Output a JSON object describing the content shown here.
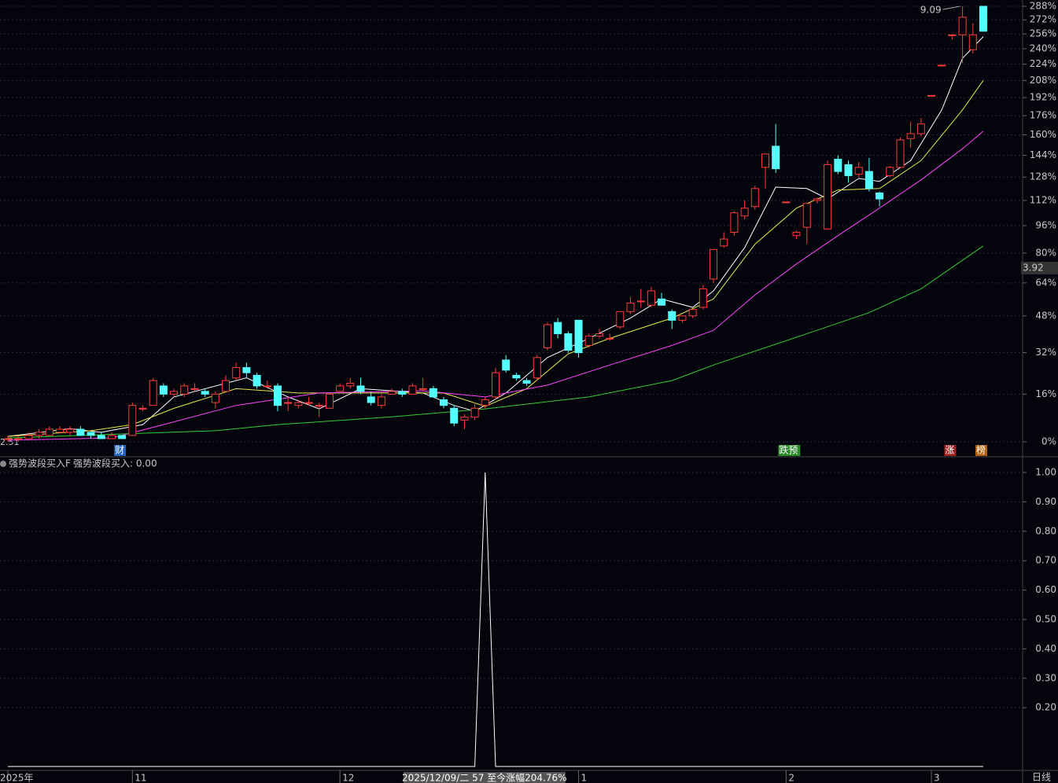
{
  "chart_data": [
    {
      "type": "candlestick",
      "ylim": [
        0,
        288
      ],
      "log_scale": true,
      "yticks": [
        {
          "value": 0,
          "label": "0%"
        },
        {
          "value": 16,
          "label": "16%"
        },
        {
          "value": 32,
          "label": "32%"
        },
        {
          "value": 48,
          "label": "48%"
        },
        {
          "value": 64,
          "label": "64%"
        },
        {
          "value": 80,
          "label": "80%"
        },
        {
          "value": 96,
          "label": "96%"
        },
        {
          "value": 112,
          "label": "112%"
        },
        {
          "value": 128,
          "label": "128%"
        },
        {
          "value": 144,
          "label": "144%"
        },
        {
          "value": 160,
          "label": "160%"
        },
        {
          "value": 176,
          "label": "176%"
        },
        {
          "value": 192,
          "label": "192%"
        },
        {
          "value": 208,
          "label": "208%"
        },
        {
          "value": 224,
          "label": "224%"
        },
        {
          "value": 240,
          "label": "240%"
        },
        {
          "value": 256,
          "label": "256%"
        },
        {
          "value": 272,
          "label": "272%"
        },
        {
          "value": 288,
          "label": "288%"
        }
      ],
      "grid": true,
      "up_color": "#ff3c3c",
      "down_color": "#54ffff",
      "candles": [
        [
          1,
          2,
          0,
          1
        ],
        [
          1,
          2,
          0,
          1
        ],
        [
          1,
          3,
          1,
          2
        ],
        [
          2,
          4,
          1,
          3
        ],
        [
          2,
          5,
          2,
          4
        ],
        [
          3,
          5,
          3,
          4
        ],
        [
          3,
          5,
          2,
          4
        ],
        [
          4,
          5,
          2,
          2
        ],
        [
          3,
          3,
          1,
          2
        ],
        [
          2,
          3,
          1,
          1
        ],
        [
          1,
          3,
          1,
          2
        ],
        [
          2,
          2,
          1,
          1
        ],
        [
          2,
          13,
          2,
          12
        ],
        [
          11,
          12,
          10,
          11
        ],
        [
          12,
          22,
          12,
          21
        ],
        [
          19,
          20,
          15,
          16
        ],
        [
          16,
          18,
          15,
          17
        ],
        [
          16,
          20,
          15,
          19
        ],
        [
          18,
          20,
          17,
          18
        ],
        [
          17,
          18,
          15,
          16
        ],
        [
          13,
          17,
          11,
          16
        ],
        [
          17,
          23,
          17,
          21
        ],
        [
          22,
          28,
          21,
          26
        ],
        [
          26,
          28,
          22,
          24
        ],
        [
          23,
          24,
          18,
          19
        ],
        [
          19,
          21,
          18,
          19
        ],
        [
          19,
          20,
          10,
          12
        ],
        [
          13,
          15,
          10,
          13
        ],
        [
          12,
          14,
          11,
          13
        ],
        [
          13,
          15,
          12,
          13
        ],
        [
          12,
          13,
          8,
          12
        ],
        [
          11,
          16,
          11,
          16
        ],
        [
          17,
          20,
          17,
          19
        ],
        [
          19,
          22,
          18,
          20
        ],
        [
          19,
          22,
          16,
          17
        ],
        [
          15,
          17,
          12,
          13
        ],
        [
          12,
          16,
          11,
          15
        ],
        [
          16,
          18,
          16,
          17
        ],
        [
          17,
          18,
          15,
          16
        ],
        [
          16,
          20,
          16,
          19
        ],
        [
          18,
          22,
          17,
          18
        ],
        [
          18,
          19,
          15,
          15
        ],
        [
          14,
          15,
          11,
          12
        ],
        [
          11,
          12,
          5,
          6
        ],
        [
          7,
          9,
          4,
          8
        ],
        [
          8,
          13,
          7,
          11
        ],
        [
          12,
          15,
          11,
          14
        ],
        [
          15,
          26,
          14,
          24
        ],
        [
          29,
          31,
          24,
          25
        ],
        [
          23,
          24,
          21,
          22
        ],
        [
          21,
          22,
          19,
          20
        ],
        [
          22,
          31,
          21,
          30
        ],
        [
          34,
          45,
          33,
          44
        ],
        [
          45,
          47,
          38,
          40
        ],
        [
          40,
          41,
          32,
          33
        ],
        [
          46,
          46,
          30,
          32
        ],
        [
          35,
          40,
          34,
          39
        ],
        [
          39,
          42,
          38,
          40
        ],
        [
          38,
          40,
          37,
          38
        ],
        [
          43,
          50,
          42,
          50
        ],
        [
          50,
          57,
          49,
          54
        ],
        [
          55,
          61,
          52,
          55
        ],
        [
          53,
          62,
          52,
          60
        ],
        [
          56,
          59,
          53,
          53
        ],
        [
          50,
          51,
          42,
          46
        ],
        [
          46,
          48,
          45,
          48
        ],
        [
          48,
          51,
          47,
          51
        ],
        [
          52,
          63,
          51,
          61
        ],
        [
          66,
          82,
          64,
          82
        ],
        [
          84,
          92,
          83,
          88
        ],
        [
          92,
          105,
          90,
          104
        ],
        [
          102,
          112,
          100,
          107
        ],
        [
          108,
          122,
          106,
          120
        ],
        [
          135,
          145,
          120,
          145
        ],
        [
          151,
          169,
          131,
          134
        ],
        [
          111,
          111,
          111,
          111
        ],
        [
          90,
          93,
          88,
          92
        ],
        [
          95,
          110,
          85,
          110
        ],
        [
          112,
          114,
          110,
          113
        ],
        [
          94,
          140,
          94,
          137
        ],
        [
          141,
          144,
          130,
          132
        ],
        [
          137,
          140,
          124,
          129
        ],
        [
          130,
          139,
          128,
          135
        ],
        [
          132,
          142,
          118,
          120
        ],
        [
          117,
          118,
          108,
          113
        ],
        [
          129,
          136,
          128,
          135
        ],
        [
          135,
          158,
          135,
          156
        ],
        [
          157,
          171,
          150,
          161
        ],
        [
          161,
          174,
          159,
          169
        ],
        [
          194,
          194,
          194,
          194
        ],
        [
          223,
          223,
          223,
          223
        ],
        [
          255,
          255,
          250,
          255
        ],
        [
          255,
          288,
          225,
          275
        ],
        [
          239,
          268,
          235,
          255
        ],
        [
          288,
          288,
          259,
          259
        ]
      ],
      "series": [
        {
          "color": "#ffffff",
          "x": [
            0,
            6,
            9,
            13,
            16,
            23,
            27,
            30,
            34,
            40,
            43,
            45,
            48,
            52,
            56,
            60,
            63,
            66,
            68,
            71,
            74,
            77,
            79,
            82,
            84,
            87,
            90,
            92,
            94
          ],
          "values": [
            1.7,
            4.2,
            3,
            5.5,
            15,
            22,
            15,
            10.8,
            18,
            16.4,
            12,
            10,
            16.4,
            30,
            38,
            47,
            56,
            52,
            60,
            83,
            121,
            120,
            113,
            127,
            125,
            140,
            181,
            230,
            253
          ]
        },
        {
          "color": "#e8e84a",
          "x": [
            0,
            8,
            12,
            16,
            22,
            28,
            36,
            42,
            46,
            50,
            54,
            58,
            64,
            68,
            72,
            76,
            80,
            84,
            88,
            92,
            94
          ],
          "values": [
            1.7,
            3.5,
            5.5,
            11,
            18,
            16.4,
            16.4,
            16.4,
            11.7,
            18,
            31.5,
            38,
            47,
            56,
            85,
            107,
            119,
            120,
            140,
            181,
            208
          ]
        },
        {
          "color": "#ff44ff",
          "x": [
            0,
            10,
            15,
            22,
            30,
            40,
            46,
            52,
            58,
            64,
            68,
            72,
            76,
            80,
            84,
            88,
            92,
            94
          ],
          "values": [
            0.5,
            1.2,
            5.5,
            12,
            16.4,
            17.2,
            15,
            19.3,
            27,
            35,
            41.5,
            58,
            74,
            90,
            107,
            126,
            149,
            163
          ]
        },
        {
          "color": "#33cc33",
          "x": [
            0,
            20,
            26,
            37,
            46,
            56,
            64,
            68,
            75,
            83,
            88,
            94
          ],
          "values": [
            1.2,
            3.5,
            5.5,
            8.1,
            10.8,
            15,
            21,
            27,
            37,
            49.5,
            61,
            84
          ]
        }
      ],
      "annotations": [
        {
          "text": "财",
          "x": 11,
          "color": "#2060c0"
        },
        {
          "text": "跌预",
          "x": 75,
          "color": "#2a8a2a"
        },
        {
          "text": "涨",
          "x": 91,
          "color": "#a02020"
        },
        {
          "text": "榜",
          "x": 94,
          "color": "#b06010"
        }
      ],
      "max_label": "9.09",
      "max_index": 92,
      "min_label": "2.51",
      "price_label": "3.92"
    },
    {
      "type": "line",
      "title": "强势波段买入F",
      "subtitle": "强势波段买入: 0.00",
      "ylim": [
        0,
        1
      ],
      "yticks": [
        {
          "value": 0.2,
          "label": "0.20"
        },
        {
          "value": 0.3,
          "label": "0.30"
        },
        {
          "value": 0.4,
          "label": "0.40"
        },
        {
          "value": 0.5,
          "label": "0.50"
        },
        {
          "value": 0.6,
          "label": "0.60"
        },
        {
          "value": 0.7,
          "label": "0.70"
        },
        {
          "value": 0.8,
          "label": "0.80"
        },
        {
          "value": 0.9,
          "label": "0.90"
        },
        {
          "value": 1,
          "label": "1.00"
        }
      ],
      "grid": true,
      "color": "#ffffff",
      "values": [
        0,
        0,
        0,
        0,
        0,
        0,
        0,
        0,
        0,
        0,
        0,
        0,
        0,
        0,
        0,
        0,
        0,
        0,
        0,
        0,
        0,
        0,
        0,
        0,
        0,
        0,
        0,
        0,
        0,
        0,
        0,
        0,
        0,
        0,
        0,
        0,
        0,
        0,
        0,
        0,
        0,
        0,
        0,
        0,
        0,
        0,
        1,
        0,
        0,
        0,
        0,
        0,
        0,
        0,
        0,
        0,
        0,
        0,
        0,
        0,
        0,
        0,
        0,
        0,
        0,
        0,
        0,
        0,
        0,
        0,
        0,
        0,
        0,
        0,
        0,
        0,
        0,
        0,
        0,
        0,
        0,
        0,
        0,
        0,
        0,
        0,
        0,
        0,
        0,
        0,
        0,
        0,
        0,
        0,
        0
      ],
      "xticks": [
        {
          "value": 0,
          "label": "2025年"
        },
        {
          "value": 12,
          "label": "11"
        },
        {
          "value": 32,
          "label": "12"
        },
        {
          "value": 55,
          "label": "1"
        },
        {
          "value": 75,
          "label": "2"
        },
        {
          "value": 89,
          "label": "3"
        }
      ],
      "period_label": "日线",
      "crosshair_x": 46,
      "crosshair_label": "2025/12/09/二 57 至今涨幅204.76%"
    }
  ]
}
